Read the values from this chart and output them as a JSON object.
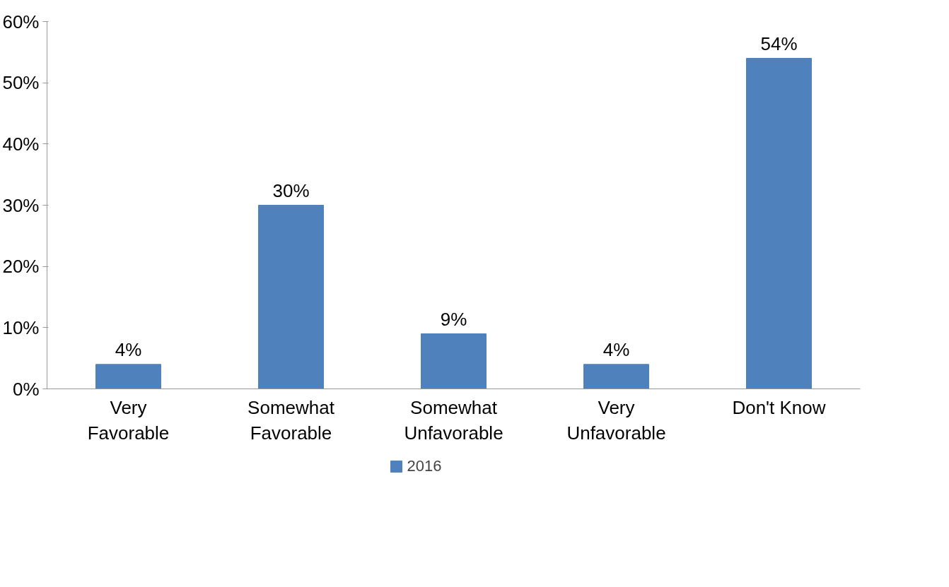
{
  "chart_data": {
    "type": "bar",
    "categories": [
      "Very Favorable",
      "Somewhat Favorable",
      "Somewhat Unfavorable",
      "Very Unfavorable",
      "Don't Know"
    ],
    "series": [
      {
        "name": "2016",
        "color": "#4f81bd",
        "values": [
          4,
          30,
          9,
          4,
          54
        ],
        "value_labels": [
          "4%",
          "30%",
          "9%",
          "4%",
          "54%"
        ]
      }
    ],
    "ylim": [
      0,
      60
    ],
    "yticks": [
      {
        "value": 0,
        "label": "0%"
      },
      {
        "value": 10,
        "label": "10%"
      },
      {
        "value": 20,
        "label": "20%"
      },
      {
        "value": 30,
        "label": "30%"
      },
      {
        "value": 40,
        "label": "40%"
      },
      {
        "value": 50,
        "label": "50%"
      },
      {
        "value": 60,
        "label": "60%"
      }
    ],
    "grid": false,
    "legend": "bottom"
  }
}
